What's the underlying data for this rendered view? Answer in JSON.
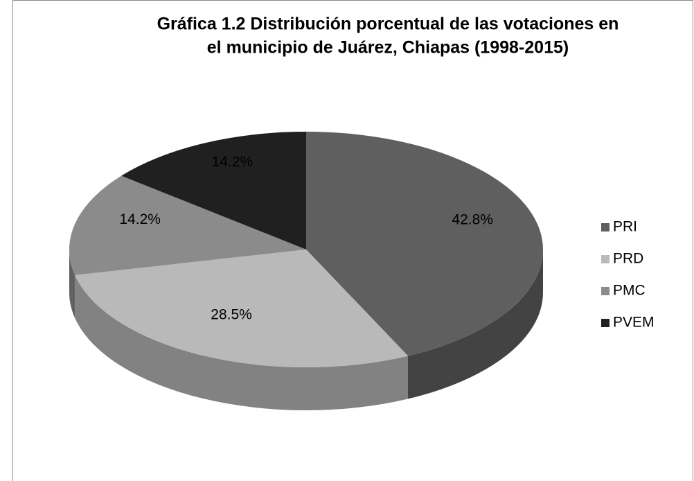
{
  "chart_data": {
    "type": "pie3d",
    "title": [
      "Gráfica 1.2 Distribución porcentual de las votaciones en",
      "el municipio de Juárez, Chiapas (1998-2015)"
    ],
    "categories": [
      "PRI",
      "PRD",
      "PMC",
      "PVEM"
    ],
    "values": [
      42.8,
      28.5,
      14.2,
      14.2
    ],
    "value_labels": [
      "42.8%",
      "28.5%",
      "14.2%",
      "14.2%"
    ],
    "colors": [
      "#5f5f5f",
      "#b9b9b9",
      "#8b8b8b",
      "#202020"
    ],
    "legend": "right"
  }
}
